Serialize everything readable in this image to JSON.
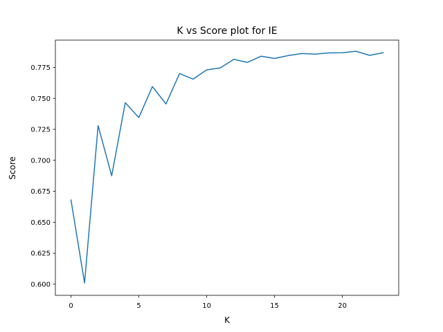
{
  "chart_data": {
    "type": "line",
    "title": "K vs Score plot for IE",
    "xlabel": "K",
    "ylabel": "Score",
    "xlim": [
      -1.15,
      24.15
    ],
    "ylim": [
      0.591,
      0.797
    ],
    "xticks": [
      0,
      5,
      10,
      15,
      20
    ],
    "xtick_labels": [
      "0",
      "5",
      "10",
      "15",
      "20"
    ],
    "yticks": [
      0.6,
      0.625,
      0.65,
      0.675,
      0.7,
      0.725,
      0.75,
      0.775
    ],
    "ytick_labels": [
      "0.600",
      "0.625",
      "0.650",
      "0.675",
      "0.700",
      "0.725",
      "0.750",
      "0.775"
    ],
    "grid": false,
    "series": [
      {
        "color": "#1f77b4",
        "x": [
          0,
          1,
          2,
          3,
          4,
          5,
          6,
          7,
          8,
          9,
          10,
          11,
          12,
          13,
          14,
          15,
          16,
          17,
          18,
          19,
          20,
          21,
          22,
          23
        ],
        "y": [
          0.668,
          0.601,
          0.728,
          0.6875,
          0.7465,
          0.7345,
          0.7595,
          0.7455,
          0.77,
          0.7655,
          0.773,
          0.7745,
          0.7815,
          0.779,
          0.784,
          0.7822,
          0.7845,
          0.7862,
          0.7857,
          0.7867,
          0.7868,
          0.788,
          0.7847,
          0.7868
        ]
      }
    ]
  }
}
